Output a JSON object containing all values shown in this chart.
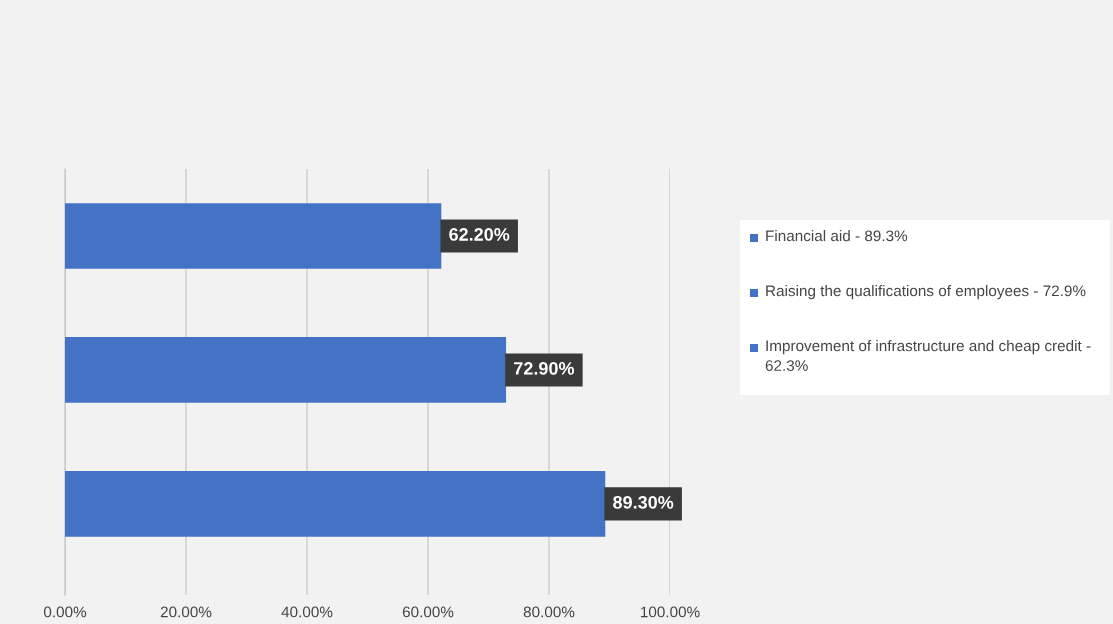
{
  "chart_data": {
    "type": "bar",
    "orientation": "horizontal",
    "categories": [
      null,
      null,
      null
    ],
    "series": [
      {
        "name": "Financial aid - 89.3%",
        "color": "#4472c4",
        "values": [
          null,
          null,
          89.3
        ],
        "value_labels": [
          null,
          null,
          "89.30%"
        ]
      },
      {
        "name": "Raising the qualifications of employees - 72.9%",
        "color": "#4472c4",
        "values": [
          null,
          72.9,
          null
        ],
        "value_labels": [
          null,
          "72.90%",
          null
        ]
      },
      {
        "name": "Improvement of infrastructure and cheap credit - 62.3%",
        "color": "#4472c4",
        "values": [
          62.2,
          null,
          null
        ],
        "value_labels": [
          "62.20%",
          null,
          null
        ]
      }
    ],
    "xlim": [
      0,
      100
    ],
    "xticks": [
      {
        "value": 0,
        "label": "0.00%"
      },
      {
        "value": 20,
        "label": "20.00%"
      },
      {
        "value": 40,
        "label": "40.00%"
      },
      {
        "value": 60,
        "label": "60.00%"
      },
      {
        "value": 80,
        "label": "80.00%"
      },
      {
        "value": 100,
        "label": "100.00%"
      }
    ],
    "grid": "x",
    "legend": "right"
  }
}
